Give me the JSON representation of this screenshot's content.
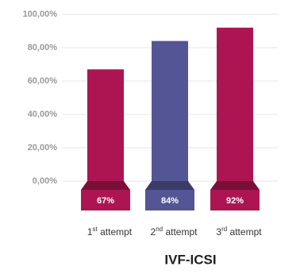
{
  "chart_data": {
    "type": "bar",
    "title": "IVF-ICSI",
    "categories": [
      "1st attempt",
      "2nd attempt",
      "3rd attempt"
    ],
    "values": [
      67,
      84,
      92
    ],
    "value_labels": [
      "67%",
      "84%",
      "92%"
    ],
    "colors": [
      "#ad1552",
      "#545594",
      "#ad1552"
    ],
    "ylim": [
      0,
      100
    ],
    "yticks": [
      {
        "value": 0,
        "label": "0,00%"
      },
      {
        "value": 20,
        "label": "20,00%"
      },
      {
        "value": 40,
        "label": "40,00%"
      },
      {
        "value": 60,
        "label": "60,00%"
      },
      {
        "value": 80,
        "label": "80,00%"
      },
      {
        "value": 100,
        "label": "100,00%"
      }
    ],
    "grid": true
  }
}
